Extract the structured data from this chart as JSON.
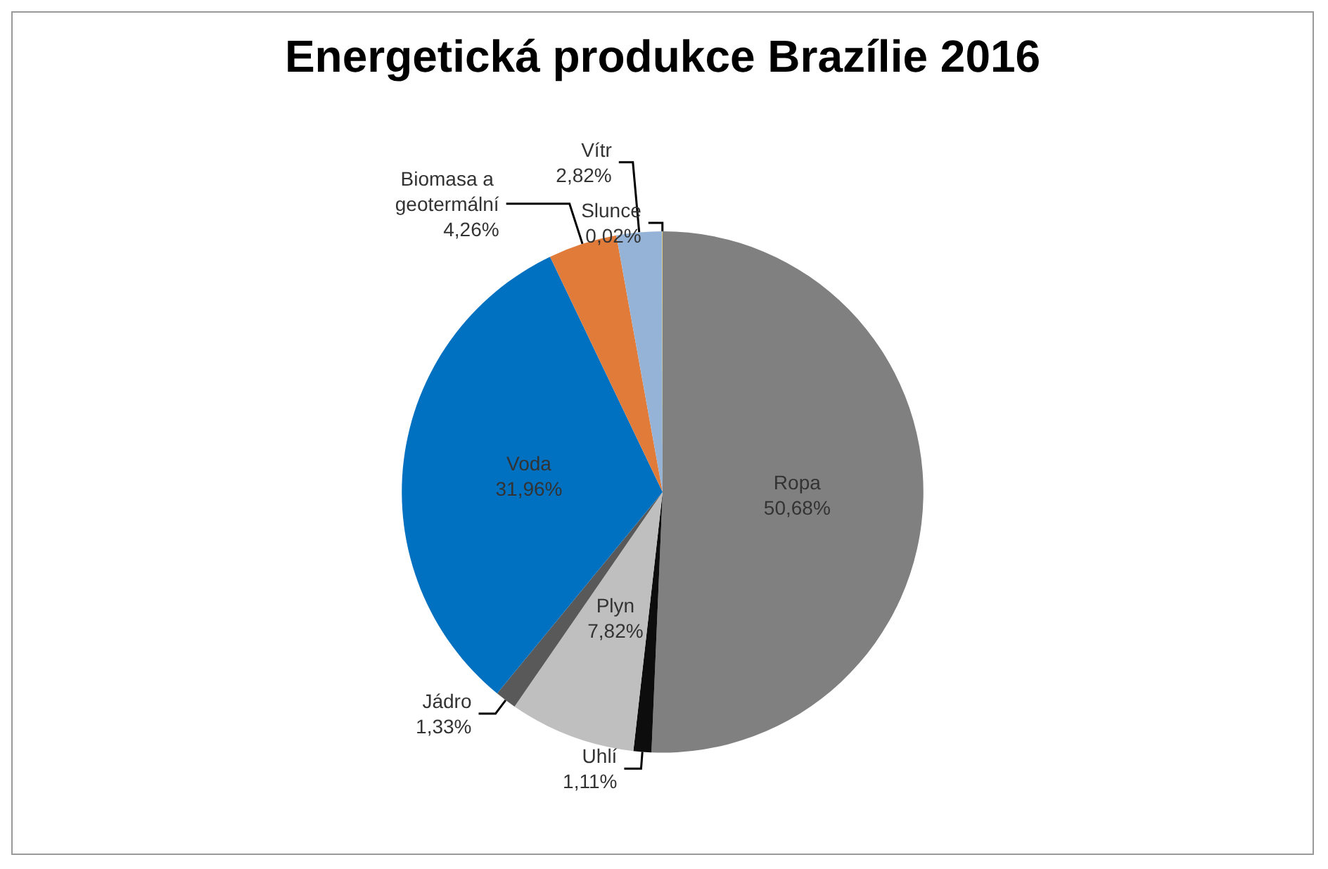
{
  "chart_data": {
    "type": "pie",
    "title": "Energetická produkce Brazílie 2016",
    "categories": [
      "Ropa",
      "Uhlí",
      "Plyn",
      "Jádro",
      "Voda",
      "Biomasa a geotermální",
      "Vítr",
      "Slunce"
    ],
    "values": [
      50.68,
      1.11,
      7.82,
      1.33,
      31.96,
      4.26,
      2.82,
      0.02
    ],
    "value_labels": [
      "50,68%",
      "1,11%",
      "7,82%",
      "1,33%",
      "31,96%",
      "4,26%",
      "2,82%",
      "0,02%"
    ],
    "colors": [
      "#808080",
      "#0d0d0d",
      "#bfbfbf",
      "#595959",
      "#0070c0",
      "#e07b39",
      "#95b3d7",
      "#ffc000"
    ],
    "legend": false
  }
}
